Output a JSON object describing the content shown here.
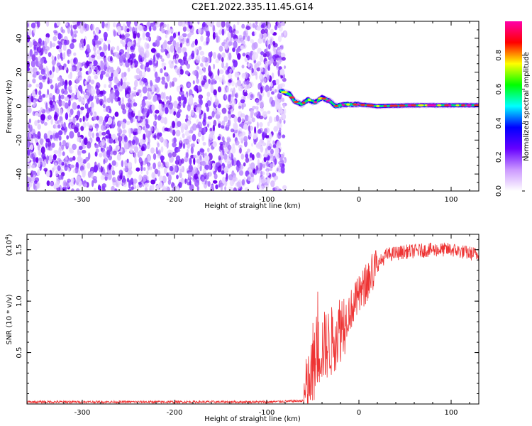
{
  "figure": {
    "title": "C2E1.2022.335.11.45.G14"
  },
  "chart_data": [
    {
      "type": "heatmap",
      "title": "",
      "xlabel": "Height of straight line (km)",
      "ylabel": "Frequency (Hz)",
      "xlim": [
        -360,
        130
      ],
      "ylim": [
        -50,
        50
      ],
      "xticks": [
        -300,
        -200,
        -100,
        0,
        100
      ],
      "yticks": [
        -40,
        -20,
        0,
        20,
        40
      ],
      "grid": false,
      "description_points": {
        "noise_region_x": [
          -360,
          -80
        ],
        "onset_x": -85,
        "signal_frequency_trace": [
          {
            "x": -85,
            "y": 9
          },
          {
            "x": -75,
            "y": 7
          },
          {
            "x": -70,
            "y": 3
          },
          {
            "x": -62,
            "y": 1
          },
          {
            "x": -55,
            "y": 4
          },
          {
            "x": -48,
            "y": 2
          },
          {
            "x": -40,
            "y": 5
          },
          {
            "x": -32,
            "y": 3
          },
          {
            "x": -25,
            "y": 0
          },
          {
            "x": -15,
            "y": 1
          },
          {
            "x": 0,
            "y": 1
          },
          {
            "x": 20,
            "y": 0
          },
          {
            "x": 60,
            "y": 0.5
          },
          {
            "x": 100,
            "y": 0.5
          },
          {
            "x": 130,
            "y": 0.5
          }
        ]
      },
      "colorbar": {
        "label": "Normalized spectral amplitude",
        "ticks": [
          "0.0",
          "0.2",
          "0.4",
          "0.6",
          "0.8"
        ],
        "tick_values": [
          0,
          0.2,
          0.4,
          0.6,
          0.8
        ],
        "range": [
          0,
          1
        ],
        "colors": [
          "#ffffff",
          "#cc99ff",
          "#6600ff",
          "#0000ff",
          "#00ffff",
          "#00ff00",
          "#ffff00",
          "#ff0000",
          "#ff00aa"
        ]
      }
    },
    {
      "type": "line",
      "title": "",
      "xlabel": "Height of straight line (km)",
      "ylabel": "SNR (10 * v/v)",
      "y_multiplier_label": "(x10",
      "y_multiplier_exp": "4",
      "y_multiplier_close": ")",
      "xlim": [
        -360,
        130
      ],
      "ylim": [
        0,
        1.65
      ],
      "xticks": [
        -300,
        -200,
        -100,
        0,
        100
      ],
      "yticks": [
        0.5,
        1.0,
        1.5
      ],
      "ytick_labels": [
        "0.5",
        "1.0",
        "1.5"
      ],
      "line_color": "#ee3333",
      "series": [
        {
          "values_envelope": [
            {
              "x": -360,
              "y": 0.02
            },
            {
              "x": -100,
              "y": 0.02
            },
            {
              "x": -60,
              "y": 0.03
            },
            {
              "x": -50,
              "y": 0.3
            },
            {
              "x": -45,
              "y": 0.5
            },
            {
              "x": -40,
              "y": 0.55
            },
            {
              "x": -30,
              "y": 0.6
            },
            {
              "x": -20,
              "y": 0.75
            },
            {
              "x": -10,
              "y": 0.9
            },
            {
              "x": 0,
              "y": 1.05
            },
            {
              "x": 10,
              "y": 1.2
            },
            {
              "x": 20,
              "y": 1.35
            },
            {
              "x": 30,
              "y": 1.45
            },
            {
              "x": 50,
              "y": 1.48
            },
            {
              "x": 80,
              "y": 1.5
            },
            {
              "x": 100,
              "y": 1.5
            },
            {
              "x": 130,
              "y": 1.45
            }
          ]
        }
      ]
    }
  ]
}
